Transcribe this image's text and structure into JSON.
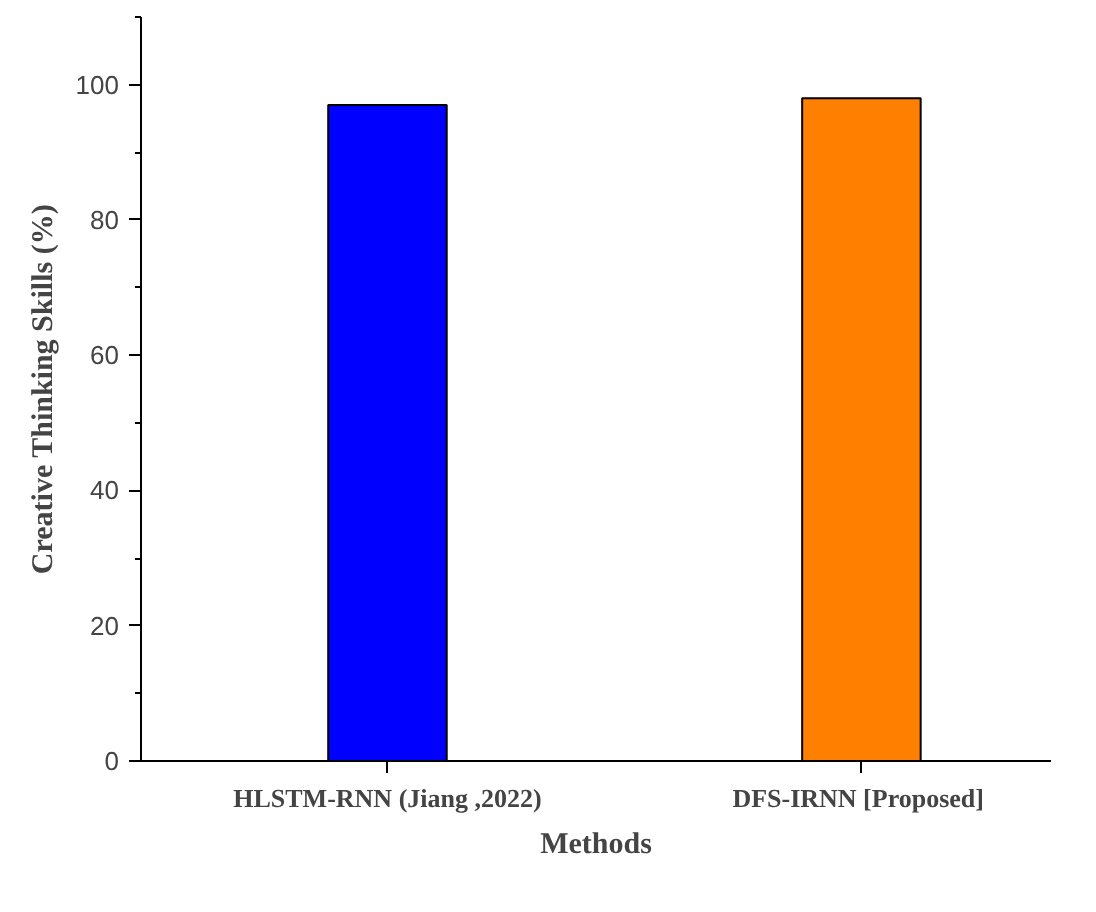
{
  "chart_data": {
    "type": "bar",
    "xlabel": "Methods",
    "ylabel": "Creative Thinking Skills (%)",
    "categories": [
      "HLSTM-RNN (Jiang ,2022)",
      "DFS-IRNN  [Proposed]"
    ],
    "values": [
      97,
      98
    ],
    "colors": [
      "#0000ff",
      "#ff7f00"
    ],
    "ylim": [
      0,
      110
    ],
    "yticks": [
      0,
      20,
      40,
      60,
      80,
      100
    ],
    "grid": false
  }
}
